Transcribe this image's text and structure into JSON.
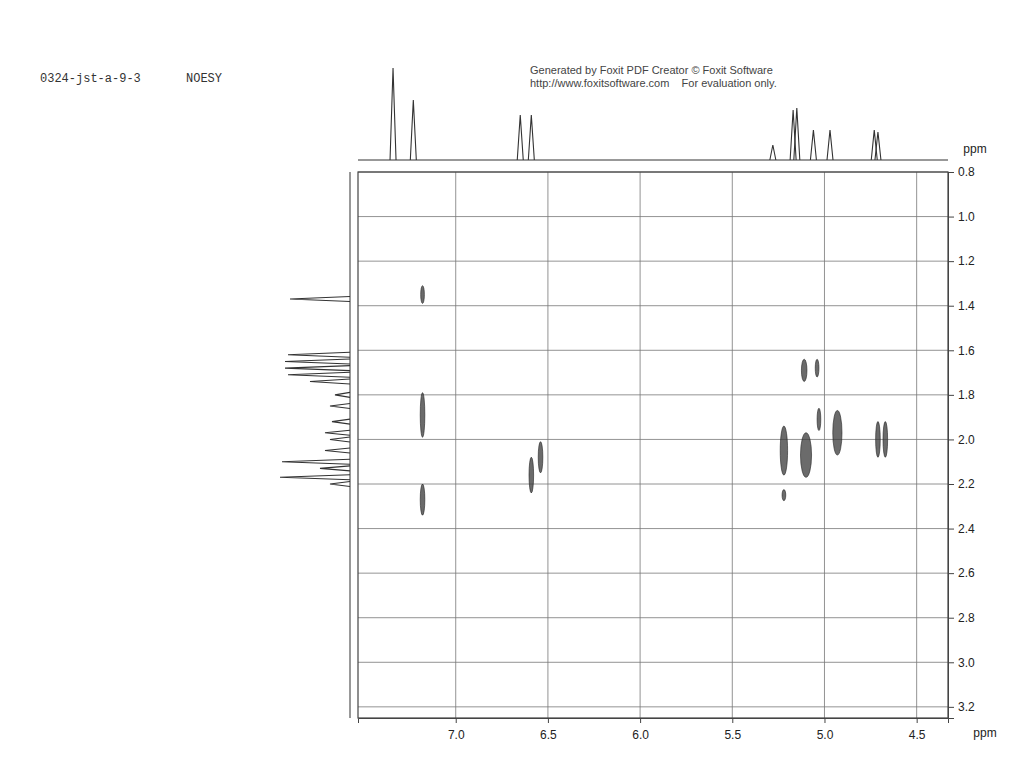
{
  "chart_data": {
    "type": "nmr_2d",
    "title": "NOESY",
    "subtitle": "0324-jst-a-9-3",
    "annotations": [
      "Generated by Foxit PDF Creator © Foxit Software",
      "http://www.foxitsoftware.com    For evaluation only."
    ],
    "x_label": "ppm",
    "y_label": "ppm",
    "xlim": [
      7.53,
      4.33
    ],
    "xticks": [
      {
        "value": 7.0,
        "label": "7.0"
      },
      6.5,
      {
        "value": 6.0,
        "label": "6.0"
      },
      5.5,
      {
        "value": 5.0,
        "label": "5.0"
      },
      4.5
    ],
    "ylim": [
      0.8,
      3.25
    ],
    "yticks": [
      0.8,
      {
        "value": 1.0,
        "label": "1.0"
      },
      1.2,
      1.4,
      1.6,
      1.8,
      {
        "value": 2.0,
        "label": "2.0"
      },
      2.2,
      2.4,
      2.6,
      2.8,
      {
        "value": 3.0,
        "label": "3.0"
      },
      3.2
    ],
    "grid": true,
    "color": "#3a3a3a",
    "cross_peaks": {
      "x": [
        7.18,
        7.18,
        7.18,
        6.59,
        6.54,
        5.11,
        5.04,
        5.22,
        5.1,
        5.03,
        4.93,
        4.71,
        4.67,
        5.22
      ],
      "y": [
        1.35,
        1.89,
        2.27,
        2.16,
        2.08,
        1.69,
        1.68,
        2.05,
        2.07,
        1.91,
        1.97,
        2.0,
        2.0,
        2.25
      ],
      "x_width": [
        0.02,
        0.025,
        0.025,
        0.025,
        0.025,
        0.03,
        0.02,
        0.04,
        0.06,
        0.02,
        0.05,
        0.025,
        0.025,
        0.02
      ],
      "y_width": [
        0.08,
        0.2,
        0.14,
        0.16,
        0.14,
        0.1,
        0.08,
        0.22,
        0.2,
        0.1,
        0.2,
        0.16,
        0.16,
        0.05
      ]
    },
    "projection_top": {
      "ppm": [
        7.34,
        7.23,
        6.65,
        6.59,
        5.28,
        5.17,
        5.15,
        5.06,
        4.97,
        4.73,
        4.71
      ],
      "intensity": [
        92,
        60,
        45,
        45,
        15,
        50,
        52,
        30,
        30,
        30,
        28
      ]
    },
    "projection_left": {
      "ppm": [
        1.37,
        1.62,
        1.65,
        1.68,
        1.71,
        1.74,
        1.8,
        1.85,
        1.92,
        1.97,
        2.0,
        2.05,
        2.1,
        2.13,
        2.17,
        2.2
      ],
      "intensity": [
        60,
        62,
        65,
        65,
        62,
        40,
        15,
        20,
        18,
        25,
        20,
        25,
        68,
        30,
        70,
        20
      ]
    }
  }
}
